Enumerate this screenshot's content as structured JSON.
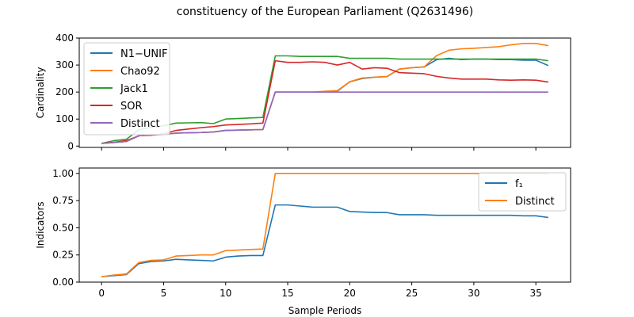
{
  "title": "constituency of the European Parliament (Q2631496)",
  "chart_data": [
    {
      "type": "line",
      "ylabel": "Cardinality",
      "xlim": [
        -1.8,
        37.8
      ],
      "ylim": [
        -5,
        400
      ],
      "xticks": [
        0,
        5,
        10,
        15,
        20,
        25,
        30,
        35
      ],
      "yticks": [
        0,
        100,
        200,
        300,
        400
      ],
      "legend_position": "upper-left",
      "x": [
        0,
        1,
        2,
        3,
        4,
        5,
        6,
        7,
        8,
        9,
        10,
        11,
        12,
        13,
        14,
        15,
        16,
        17,
        18,
        19,
        20,
        21,
        22,
        23,
        24,
        25,
        26,
        27,
        28,
        29,
        30,
        31,
        32,
        33,
        34,
        35,
        36
      ],
      "series": [
        {
          "name": "N1−UNIF",
          "color": "#1f77b4",
          "values": [
            10,
            13,
            17,
            38,
            42,
            43,
            48,
            49,
            50,
            52,
            58,
            59,
            60,
            61,
            200,
            200,
            200,
            200,
            200,
            203,
            238,
            250,
            255,
            257,
            285,
            290,
            293,
            320,
            325,
            320,
            322,
            322,
            320,
            320,
            318,
            318,
            298
          ]
        },
        {
          "name": "Chao92",
          "color": "#ff7f0e",
          "values": [
            10,
            13,
            17,
            38,
            42,
            43,
            48,
            49,
            50,
            52,
            58,
            59,
            60,
            61,
            200,
            200,
            200,
            200,
            203,
            205,
            238,
            252,
            255,
            258,
            285,
            290,
            293,
            335,
            355,
            360,
            362,
            365,
            368,
            375,
            380,
            380,
            372
          ]
        },
        {
          "name": "Jack1",
          "color": "#2ca02c",
          "values": [
            10,
            20,
            25,
            60,
            70,
            75,
            85,
            86,
            87,
            83,
            100,
            102,
            104,
            106,
            334,
            334,
            332,
            332,
            332,
            332,
            325,
            325,
            325,
            325,
            322,
            322,
            322,
            322,
            322,
            322,
            322,
            322,
            322,
            322,
            322,
            322,
            316
          ]
        },
        {
          "name": "SOR",
          "color": "#d62728",
          "values": [
            10,
            14,
            20,
            38,
            40,
            45,
            58,
            63,
            68,
            72,
            78,
            80,
            82,
            85,
            316,
            310,
            310,
            312,
            310,
            300,
            310,
            285,
            290,
            288,
            272,
            270,
            268,
            258,
            252,
            248,
            248,
            248,
            245,
            244,
            245,
            244,
            237
          ]
        },
        {
          "name": "Distinct",
          "color": "#9467bd",
          "values": [
            10,
            13,
            17,
            38,
            42,
            43,
            48,
            49,
            50,
            52,
            58,
            59,
            60,
            61,
            200,
            200,
            200,
            200,
            200,
            200,
            200,
            200,
            200,
            200,
            200,
            200,
            200,
            200,
            200,
            200,
            200,
            200,
            200,
            200,
            200,
            200,
            200
          ]
        }
      ]
    },
    {
      "type": "line",
      "xlabel": "Sample Periods",
      "ylabel": "Indicators",
      "xlim": [
        -1.8,
        37.8
      ],
      "ylim": [
        0,
        1.05
      ],
      "xticks": [
        0,
        5,
        10,
        15,
        20,
        25,
        30,
        35
      ],
      "yticks": [
        0.0,
        0.25,
        0.5,
        0.75,
        1.0
      ],
      "ytick_labels": [
        "0.00",
        "0.25",
        "0.50",
        "0.75",
        "1.00"
      ],
      "legend_position": "upper-right",
      "x": [
        0,
        1,
        2,
        3,
        4,
        5,
        6,
        7,
        8,
        9,
        10,
        11,
        12,
        13,
        14,
        15,
        16,
        17,
        18,
        19,
        20,
        21,
        22,
        23,
        24,
        25,
        26,
        27,
        28,
        29,
        30,
        31,
        32,
        33,
        34,
        35,
        36
      ],
      "series": [
        {
          "name": "f₁",
          "color": "#1f77b4",
          "values": [
            0.05,
            0.06,
            0.07,
            0.17,
            0.19,
            0.195,
            0.21,
            0.205,
            0.2,
            0.195,
            0.23,
            0.24,
            0.245,
            0.245,
            0.71,
            0.71,
            0.7,
            0.69,
            0.69,
            0.69,
            0.65,
            0.645,
            0.64,
            0.64,
            0.62,
            0.62,
            0.62,
            0.615,
            0.615,
            0.615,
            0.615,
            0.615,
            0.615,
            0.615,
            0.61,
            0.61,
            0.595
          ]
        },
        {
          "name": "Distinct",
          "color": "#ff7f0e",
          "values": [
            0.05,
            0.065,
            0.075,
            0.18,
            0.2,
            0.205,
            0.24,
            0.245,
            0.25,
            0.25,
            0.29,
            0.295,
            0.3,
            0.305,
            1.0,
            1.0,
            1.0,
            1.0,
            1.0,
            1.0,
            1.0,
            1.0,
            1.0,
            1.0,
            1.0,
            1.0,
            1.0,
            1.0,
            1.0,
            1.0,
            1.0,
            1.0,
            1.0,
            1.0,
            1.0,
            1.0,
            1.0
          ]
        }
      ]
    }
  ]
}
